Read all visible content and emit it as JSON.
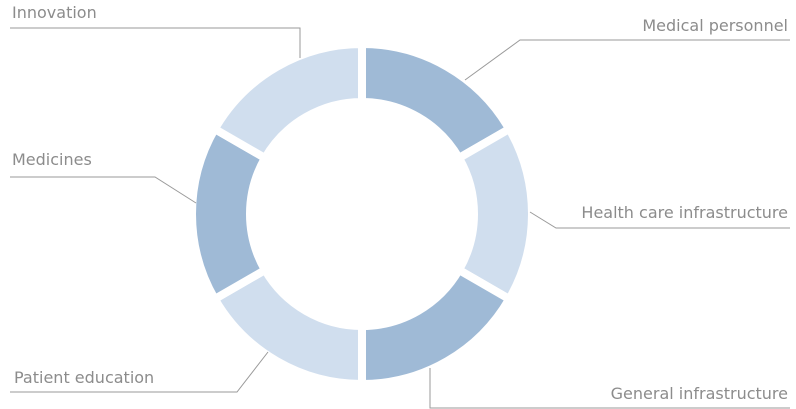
{
  "chart_data": {
    "type": "donut",
    "categories": [
      "Medical personnel",
      "Health care infrastructure",
      "General infrastructure",
      "Patient education",
      "Medicines",
      "Innovation"
    ],
    "values": [
      1,
      1,
      1,
      1,
      1,
      1
    ],
    "colors": [
      "#9fbad6",
      "#d0deee",
      "#9fbad6",
      "#d0deee",
      "#9fbad6",
      "#d0deee"
    ]
  }
}
